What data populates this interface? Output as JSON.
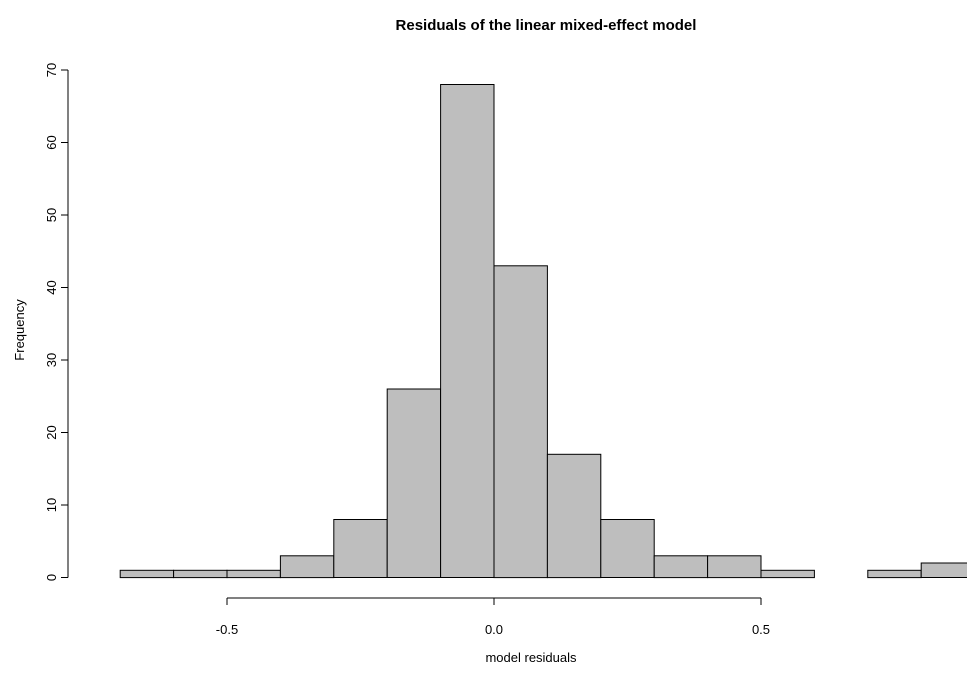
{
  "chart_data": {
    "type": "bar",
    "title": "Residuals of the linear mixed-effect model",
    "xlabel": "model residuals",
    "ylabel": "Frequency",
    "bin_edges": [
      -0.7,
      -0.6,
      -0.5,
      -0.4,
      -0.3,
      -0.2,
      -0.1,
      0.0,
      0.1,
      0.2,
      0.3,
      0.4,
      0.5,
      0.6,
      0.7,
      0.8,
      0.9
    ],
    "values": [
      1,
      1,
      1,
      3,
      8,
      26,
      68,
      43,
      17,
      8,
      3,
      3,
      1,
      0,
      1,
      2
    ],
    "xlim": [
      -0.7,
      0.9
    ],
    "ylim": [
      0,
      70
    ],
    "x_ticks": [
      -0.5,
      0.0,
      0.5
    ],
    "x_tick_labels": [
      "-0.5",
      "0.0",
      "0.5"
    ],
    "y_ticks": [
      0,
      10,
      20,
      30,
      40,
      50,
      60,
      70
    ],
    "y_tick_labels": [
      "0",
      "10",
      "20",
      "30",
      "40",
      "50",
      "60",
      "70"
    ],
    "bar_color": "#bebebe",
    "grid": false
  }
}
